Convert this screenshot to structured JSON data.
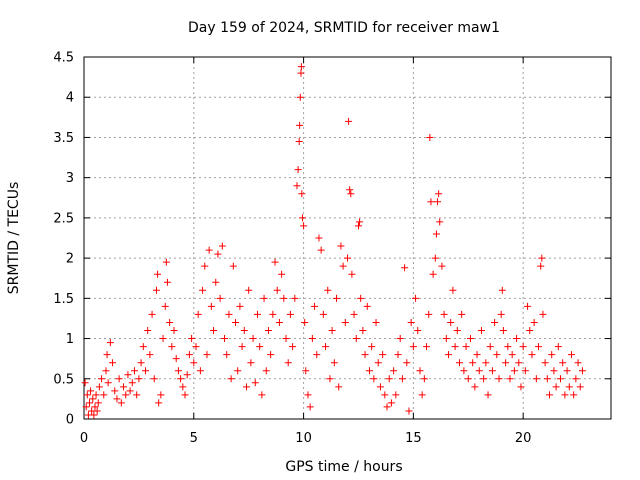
{
  "chart_data": {
    "type": "scatter",
    "title": "Day 159 of 2024, SRMTID for receiver maw1",
    "xlabel": "GPS time / hours",
    "ylabel": "SRMTID / TECUs",
    "xlim": [
      0,
      24
    ],
    "ylim": [
      0,
      4.5
    ],
    "x_ticks": [
      0,
      5,
      10,
      15,
      20
    ],
    "x_tick_labels": [
      "0",
      "5",
      "10",
      "15",
      "20"
    ],
    "y_ticks": [
      0,
      0.5,
      1,
      1.5,
      2,
      2.5,
      3,
      3.5,
      4,
      4.5
    ],
    "y_tick_labels": [
      "0",
      "0.5",
      "1",
      "1.5",
      "2",
      "2.5",
      "3",
      "3.5",
      "4",
      "4.5"
    ],
    "grid": true,
    "marker": "plus",
    "color": "#ff0000",
    "series": [
      {
        "name": "maw1",
        "points": [
          [
            0.05,
            0.45
          ],
          [
            0.1,
            0.15
          ],
          [
            0.15,
            0.3
          ],
          [
            0.2,
            0.05
          ],
          [
            0.25,
            0.2
          ],
          [
            0.3,
            0.35
          ],
          [
            0.35,
            0.1
          ],
          [
            0.4,
            0.25
          ],
          [
            0.45,
            0.05
          ],
          [
            0.5,
            0.15
          ],
          [
            0.55,
            0.3
          ],
          [
            0.6,
            0.1
          ],
          [
            0.65,
            0.2
          ],
          [
            0.7,
            0.4
          ],
          [
            0.8,
            0.5
          ],
          [
            0.9,
            0.3
          ],
          [
            1.0,
            0.6
          ],
          [
            1.05,
            0.8
          ],
          [
            1.1,
            0.45
          ],
          [
            1.2,
            0.95
          ],
          [
            1.3,
            0.7
          ],
          [
            1.4,
            0.35
          ],
          [
            1.5,
            0.25
          ],
          [
            1.6,
            0.5
          ],
          [
            1.7,
            0.2
          ],
          [
            1.8,
            0.4
          ],
          [
            1.9,
            0.3
          ],
          [
            2.0,
            0.55
          ],
          [
            2.1,
            0.35
          ],
          [
            2.2,
            0.45
          ],
          [
            2.3,
            0.6
          ],
          [
            2.4,
            0.3
          ],
          [
            2.5,
            0.5
          ],
          [
            2.6,
            0.7
          ],
          [
            2.7,
            0.9
          ],
          [
            2.8,
            0.6
          ],
          [
            2.9,
            1.1
          ],
          [
            3.0,
            0.8
          ],
          [
            3.1,
            1.3
          ],
          [
            3.2,
            0.5
          ],
          [
            3.3,
            1.6
          ],
          [
            3.35,
            1.8
          ],
          [
            3.4,
            0.2
          ],
          [
            3.5,
            0.3
          ],
          [
            3.6,
            1.0
          ],
          [
            3.7,
            1.4
          ],
          [
            3.75,
            1.95
          ],
          [
            3.8,
            1.7
          ],
          [
            3.9,
            1.2
          ],
          [
            4.0,
            0.9
          ],
          [
            4.1,
            1.1
          ],
          [
            4.2,
            0.75
          ],
          [
            4.3,
            0.6
          ],
          [
            4.4,
            0.5
          ],
          [
            4.5,
            0.4
          ],
          [
            4.6,
            0.3
          ],
          [
            4.7,
            0.55
          ],
          [
            4.8,
            0.8
          ],
          [
            4.9,
            1.0
          ],
          [
            5.0,
            0.7
          ],
          [
            5.1,
            0.9
          ],
          [
            5.2,
            1.3
          ],
          [
            5.3,
            0.6
          ],
          [
            5.4,
            1.6
          ],
          [
            5.5,
            1.9
          ],
          [
            5.6,
            0.8
          ],
          [
            5.7,
            2.1
          ],
          [
            5.8,
            1.4
          ],
          [
            5.9,
            1.1
          ],
          [
            6.0,
            1.7
          ],
          [
            6.1,
            2.05
          ],
          [
            6.2,
            1.5
          ],
          [
            6.3,
            2.15
          ],
          [
            6.4,
            1.0
          ],
          [
            6.5,
            0.8
          ],
          [
            6.6,
            1.3
          ],
          [
            6.7,
            0.5
          ],
          [
            6.8,
            1.9
          ],
          [
            6.9,
            1.2
          ],
          [
            7.0,
            0.6
          ],
          [
            7.1,
            1.4
          ],
          [
            7.2,
            0.9
          ],
          [
            7.3,
            1.1
          ],
          [
            7.4,
            0.4
          ],
          [
            7.5,
            1.6
          ],
          [
            7.6,
            0.7
          ],
          [
            7.7,
            1.0
          ],
          [
            7.8,
            0.45
          ],
          [
            7.9,
            1.3
          ],
          [
            8.0,
            0.9
          ],
          [
            8.1,
            0.3
          ],
          [
            8.2,
            1.5
          ],
          [
            8.3,
            0.6
          ],
          [
            8.4,
            1.1
          ],
          [
            8.5,
            0.8
          ],
          [
            8.6,
            1.3
          ],
          [
            8.7,
            1.95
          ],
          [
            8.8,
            1.6
          ],
          [
            8.9,
            1.2
          ],
          [
            9.0,
            1.8
          ],
          [
            9.1,
            1.5
          ],
          [
            9.2,
            1.0
          ],
          [
            9.3,
            0.7
          ],
          [
            9.4,
            1.3
          ],
          [
            9.5,
            0.9
          ],
          [
            9.6,
            1.5
          ],
          [
            9.7,
            2.9
          ],
          [
            9.75,
            3.1
          ],
          [
            9.8,
            3.45
          ],
          [
            9.82,
            3.65
          ],
          [
            9.85,
            4.0
          ],
          [
            9.88,
            4.3
          ],
          [
            9.9,
            4.38
          ],
          [
            9.92,
            2.8
          ],
          [
            9.95,
            2.5
          ],
          [
            10.0,
            2.4
          ],
          [
            10.05,
            1.2
          ],
          [
            10.1,
            0.6
          ],
          [
            10.2,
            0.3
          ],
          [
            10.3,
            0.15
          ],
          [
            10.4,
            1.0
          ],
          [
            10.5,
            1.4
          ],
          [
            10.6,
            0.8
          ],
          [
            10.7,
            2.25
          ],
          [
            10.8,
            2.1
          ],
          [
            10.9,
            1.3
          ],
          [
            11.0,
            0.9
          ],
          [
            11.1,
            1.6
          ],
          [
            11.2,
            0.5
          ],
          [
            11.3,
            1.1
          ],
          [
            11.4,
            0.7
          ],
          [
            11.5,
            1.5
          ],
          [
            11.6,
            0.4
          ],
          [
            11.7,
            2.15
          ],
          [
            11.8,
            1.9
          ],
          [
            11.9,
            1.2
          ],
          [
            12.0,
            2.0
          ],
          [
            12.05,
            3.7
          ],
          [
            12.1,
            2.85
          ],
          [
            12.15,
            2.8
          ],
          [
            12.2,
            1.8
          ],
          [
            12.3,
            1.3
          ],
          [
            12.4,
            1.0
          ],
          [
            12.5,
            2.4
          ],
          [
            12.55,
            2.45
          ],
          [
            12.6,
            1.5
          ],
          [
            12.7,
            1.1
          ],
          [
            12.8,
            0.8
          ],
          [
            12.9,
            1.4
          ],
          [
            13.0,
            0.6
          ],
          [
            13.1,
            0.9
          ],
          [
            13.2,
            0.5
          ],
          [
            13.3,
            1.2
          ],
          [
            13.4,
            0.7
          ],
          [
            13.5,
            0.4
          ],
          [
            13.6,
            0.8
          ],
          [
            13.7,
            0.3
          ],
          [
            13.8,
            0.15
          ],
          [
            13.9,
            0.5
          ],
          [
            14.0,
            0.2
          ],
          [
            14.1,
            0.6
          ],
          [
            14.2,
            0.3
          ],
          [
            14.3,
            0.8
          ],
          [
            14.4,
            1.0
          ],
          [
            14.5,
            0.5
          ],
          [
            14.6,
            1.88
          ],
          [
            14.7,
            0.7
          ],
          [
            14.8,
            0.1
          ],
          [
            14.9,
            1.2
          ],
          [
            15.0,
            0.9
          ],
          [
            15.1,
            1.5
          ],
          [
            15.2,
            1.1
          ],
          [
            15.3,
            0.6
          ],
          [
            15.4,
            0.3
          ],
          [
            15.5,
            0.5
          ],
          [
            15.6,
            0.9
          ],
          [
            15.7,
            1.3
          ],
          [
            15.75,
            3.5
          ],
          [
            15.8,
            2.7
          ],
          [
            15.9,
            1.8
          ],
          [
            16.0,
            2.0
          ],
          [
            16.05,
            2.3
          ],
          [
            16.1,
            2.7
          ],
          [
            16.15,
            2.8
          ],
          [
            16.2,
            2.45
          ],
          [
            16.3,
            1.9
          ],
          [
            16.4,
            1.3
          ],
          [
            16.5,
            1.0
          ],
          [
            16.6,
            0.8
          ],
          [
            16.7,
            1.2
          ],
          [
            16.8,
            1.6
          ],
          [
            16.9,
            0.9
          ],
          [
            17.0,
            1.1
          ],
          [
            17.1,
            0.7
          ],
          [
            17.2,
            1.3
          ],
          [
            17.3,
            0.6
          ],
          [
            17.4,
            0.9
          ],
          [
            17.5,
            0.5
          ],
          [
            17.6,
            1.0
          ],
          [
            17.7,
            0.7
          ],
          [
            17.8,
            0.4
          ],
          [
            17.9,
            0.8
          ],
          [
            18.0,
            0.6
          ],
          [
            18.1,
            1.1
          ],
          [
            18.2,
            0.5
          ],
          [
            18.3,
            0.7
          ],
          [
            18.4,
            0.3
          ],
          [
            18.5,
            0.9
          ],
          [
            18.6,
            0.6
          ],
          [
            18.7,
            1.2
          ],
          [
            18.8,
            0.8
          ],
          [
            18.9,
            0.5
          ],
          [
            19.0,
            1.3
          ],
          [
            19.05,
            1.6
          ],
          [
            19.1,
            1.1
          ],
          [
            19.2,
            0.7
          ],
          [
            19.3,
            0.9
          ],
          [
            19.4,
            0.5
          ],
          [
            19.5,
            0.8
          ],
          [
            19.6,
            0.6
          ],
          [
            19.7,
            1.0
          ],
          [
            19.8,
            0.7
          ],
          [
            19.9,
            0.4
          ],
          [
            20.0,
            0.9
          ],
          [
            20.1,
            0.6
          ],
          [
            20.2,
            1.4
          ],
          [
            20.3,
            1.1
          ],
          [
            20.4,
            0.8
          ],
          [
            20.5,
            1.2
          ],
          [
            20.6,
            0.5
          ],
          [
            20.7,
            0.9
          ],
          [
            20.8,
            1.9
          ],
          [
            20.85,
            2.0
          ],
          [
            20.9,
            1.3
          ],
          [
            21.0,
            0.7
          ],
          [
            21.1,
            0.5
          ],
          [
            21.2,
            0.3
          ],
          [
            21.3,
            0.8
          ],
          [
            21.4,
            0.6
          ],
          [
            21.5,
            0.4
          ],
          [
            21.6,
            0.9
          ],
          [
            21.7,
            0.5
          ],
          [
            21.8,
            0.7
          ],
          [
            21.9,
            0.3
          ],
          [
            22.0,
            0.6
          ],
          [
            22.1,
            0.4
          ],
          [
            22.2,
            0.8
          ],
          [
            22.3,
            0.3
          ],
          [
            22.4,
            0.5
          ],
          [
            22.5,
            0.7
          ],
          [
            22.6,
            0.4
          ],
          [
            22.7,
            0.6
          ]
        ]
      }
    ]
  }
}
